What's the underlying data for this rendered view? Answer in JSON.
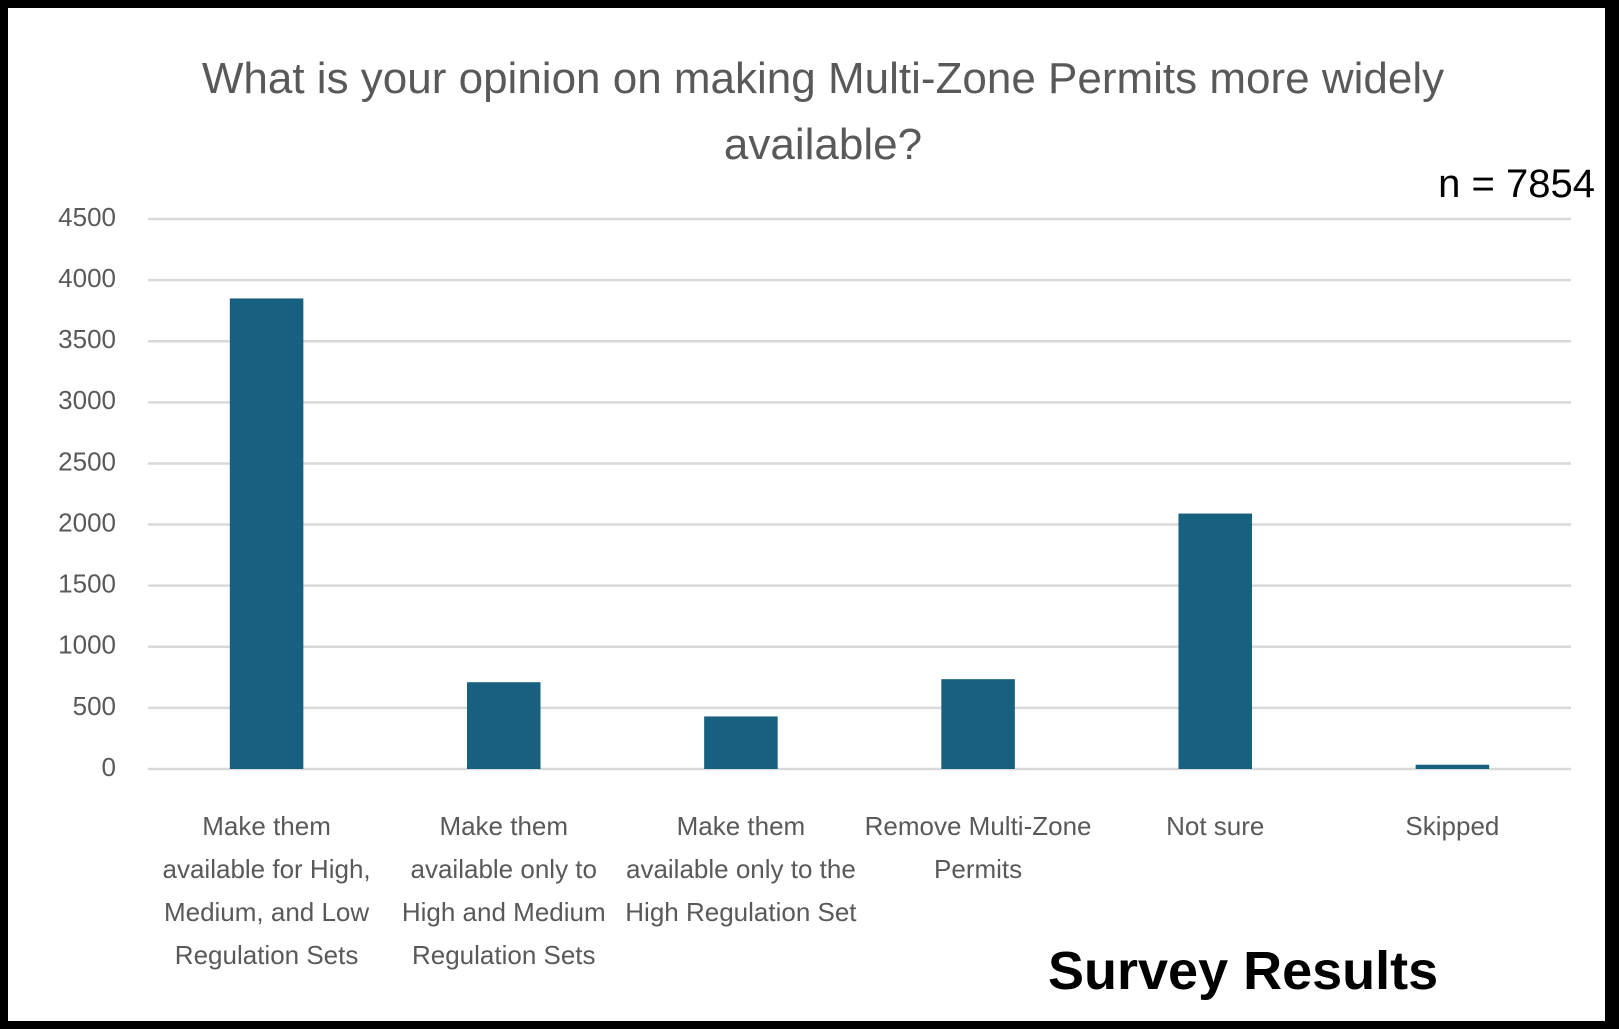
{
  "chart_data": {
    "type": "bar",
    "title": "What is your opinion on making Multi-Zone Permits more widely available?",
    "annotations": [
      "n = 7854",
      "Survey Results"
    ],
    "categories": [
      "Make them available for High, Medium, and Low Regulation Sets",
      "Make them available only to High and Medium Regulation Sets",
      "Make them available only to the High Regulation Set",
      "Remove Multi-Zone Permits",
      "Not sure",
      "Skipped"
    ],
    "values": [
      3850,
      710,
      430,
      735,
      2090,
      35
    ],
    "color": "#17607f",
    "ylim": [
      0,
      4500
    ],
    "yticks": [
      0,
      500,
      1000,
      1500,
      2000,
      2500,
      3000,
      3500,
      4000,
      4500
    ],
    "grid": true
  }
}
